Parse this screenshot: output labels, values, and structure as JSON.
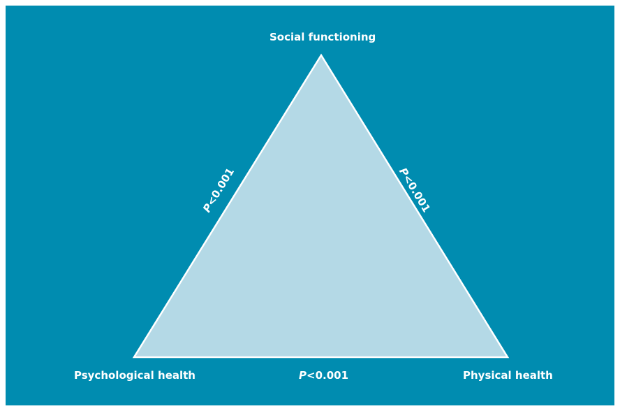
{
  "diagram": {
    "nodes": {
      "top": "Social functioning",
      "left": "Psychological health",
      "right": "Physical health"
    },
    "edges": {
      "left": {
        "p_symbol": "P",
        "p_value": "<0.001"
      },
      "right": {
        "p_symbol": "P",
        "p_value": "<0.001"
      },
      "bottom": {
        "p_symbol": "P",
        "p_value": "<0.001"
      }
    }
  },
  "colors": {
    "background": "#008cb0",
    "triangle_fill": "#b4d9e6",
    "triangle_stroke": "#ffffff",
    "text": "#ffffff"
  }
}
